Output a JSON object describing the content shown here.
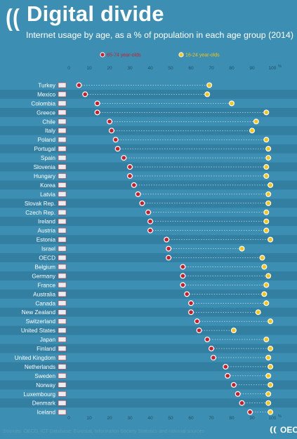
{
  "header": {
    "title": "Digital divide",
    "subtitle": "Internet usage by age, as a % of population in each age group (2014)"
  },
  "footer": {
    "source": "Sources: OECD, ICT Database; Eurostat, Information Society Statistics and national sources",
    "brand": "OECD"
  },
  "colors": {
    "background": "#3c8fb2",
    "band": "#337fa2",
    "older_marker": "#c8202a",
    "younger_marker": "#f5c518",
    "connector": "#ffffff"
  },
  "chart_data": {
    "type": "scatter",
    "series": [
      {
        "name": "65-74 year-olds",
        "color": "#c8202a"
      },
      {
        "name": "16-24 year-olds",
        "color": "#f5c518"
      }
    ],
    "x_ticks": [
      "0",
      "10",
      "20",
      "30",
      "40",
      "50",
      "60",
      "70",
      "80",
      "90",
      "100"
    ],
    "x_unit": "%",
    "xlim": [
      0,
      100
    ],
    "categories": [
      "Turkey",
      "Mexico",
      "Colombia",
      "Greece",
      "Chile",
      "Italy",
      "Poland",
      "Portugal",
      "Spain",
      "Slovenia",
      "Hungary",
      "Korea",
      "Latvia",
      "Slovak Rep.",
      "Czech Rep.",
      "Ireland",
      "Austria",
      "Estonia",
      "Israel",
      "OECD",
      "Belgium",
      "Germany",
      "France",
      "Australia",
      "Canada",
      "New Zealand",
      "Switzerland",
      "United States",
      "Japan",
      "Finland",
      "United Kingdom",
      "Netherlands",
      "Sweden",
      "Norway",
      "Luxembourg",
      "Denmark",
      "Iceland"
    ],
    "older_65_74": [
      5,
      8,
      14,
      14,
      20,
      21,
      23,
      24,
      27,
      30,
      30,
      32,
      34,
      36,
      39,
      40,
      40,
      48,
      49,
      49,
      56,
      56,
      56,
      58,
      60,
      60,
      63,
      64,
      68,
      70,
      71,
      77,
      78,
      81,
      83,
      85,
      89
    ],
    "younger_16_24": [
      69,
      68,
      80,
      97,
      92,
      90,
      97,
      98,
      98,
      97,
      97,
      99,
      98,
      98,
      97,
      97,
      97,
      99,
      85,
      95,
      96,
      98,
      97,
      96,
      97,
      93,
      99,
      81,
      97,
      99,
      98,
      99,
      98,
      99,
      98,
      98,
      99
    ],
    "legend": "top"
  }
}
